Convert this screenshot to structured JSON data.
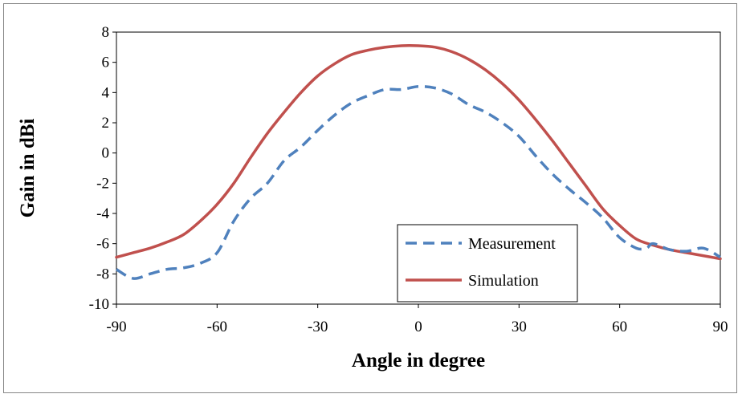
{
  "chart_data": {
    "type": "line",
    "title": "",
    "xlabel": "Angle in degree",
    "ylabel": "Gain in dBi",
    "xlim": [
      -90,
      90
    ],
    "ylim": [
      -10,
      8
    ],
    "xticks": [
      -90,
      -60,
      -30,
      0,
      30,
      60,
      90
    ],
    "yticks": [
      -10,
      -8,
      -6,
      -4,
      -2,
      0,
      2,
      4,
      6,
      8
    ],
    "grid": false,
    "legend_position": "bottom-right",
    "series": [
      {
        "name": "Measurement",
        "color": "#4f81bd",
        "style": "dashed",
        "x": [
          -90,
          -85,
          -80,
          -75,
          -70,
          -65,
          -60,
          -55,
          -50,
          -45,
          -40,
          -35,
          -30,
          -25,
          -20,
          -15,
          -10,
          -5,
          0,
          5,
          10,
          15,
          20,
          25,
          30,
          35,
          40,
          45,
          50,
          55,
          60,
          65,
          68,
          70,
          75,
          80,
          85,
          90
        ],
        "y": [
          -7.7,
          -8.3,
          -8.0,
          -7.7,
          -7.6,
          -7.3,
          -6.6,
          -4.5,
          -3.0,
          -2.0,
          -0.5,
          0.4,
          1.5,
          2.5,
          3.3,
          3.8,
          4.2,
          4.2,
          4.4,
          4.3,
          3.9,
          3.2,
          2.7,
          2.0,
          1.1,
          -0.2,
          -1.4,
          -2.4,
          -3.3,
          -4.3,
          -5.6,
          -6.3,
          -6.3,
          -6.0,
          -6.4,
          -6.5,
          -6.3,
          -6.9
        ]
      },
      {
        "name": "Simulation",
        "color": "#c0504d",
        "style": "solid",
        "x": [
          -90,
          -85,
          -80,
          -75,
          -70,
          -65,
          -60,
          -55,
          -50,
          -45,
          -40,
          -35,
          -30,
          -25,
          -20,
          -15,
          -10,
          -5,
          0,
          5,
          10,
          15,
          20,
          25,
          30,
          35,
          40,
          45,
          50,
          55,
          60,
          65,
          70,
          75,
          80,
          85,
          90
        ],
        "y": [
          -6.9,
          -6.6,
          -6.3,
          -5.9,
          -5.4,
          -4.5,
          -3.4,
          -2.0,
          -0.3,
          1.3,
          2.7,
          4.0,
          5.1,
          5.9,
          6.5,
          6.8,
          7.0,
          7.1,
          7.1,
          7.0,
          6.7,
          6.2,
          5.5,
          4.6,
          3.5,
          2.2,
          0.8,
          -0.7,
          -2.2,
          -3.7,
          -4.8,
          -5.7,
          -6.1,
          -6.4,
          -6.6,
          -6.8,
          -7.0
        ]
      }
    ]
  }
}
